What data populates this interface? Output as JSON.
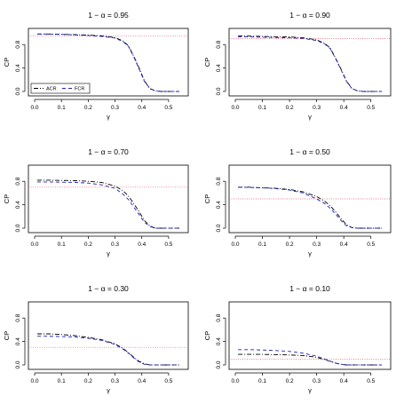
{
  "chart_data": [
    {
      "type": "line",
      "title": "1 − α = 0.95",
      "xlabel": "γ",
      "ylabel": "CP",
      "xlim": [
        0.0,
        0.55
      ],
      "ylim": [
        0.0,
        1.0
      ],
      "xticks": [
        "0.0",
        "0.1",
        "0.2",
        "0.3",
        "0.4",
        "0.5"
      ],
      "yticks": [
        "0.0",
        "0.4",
        "0.8"
      ],
      "reference": 0.95,
      "legend": {
        "placement": "bottom-left",
        "entries": [
          "ACR",
          "FCR"
        ]
      },
      "series": [
        {
          "name": "ACR",
          "color": "#000000",
          "style": "dot-dash",
          "x": [
            0.01,
            0.05,
            0.1,
            0.15,
            0.2,
            0.25,
            0.3,
            0.33,
            0.35,
            0.37,
            0.39,
            0.41,
            0.43,
            0.45,
            0.47,
            0.5,
            0.54
          ],
          "y": [
            0.98,
            0.98,
            0.975,
            0.97,
            0.96,
            0.95,
            0.92,
            0.86,
            0.78,
            0.6,
            0.4,
            0.18,
            0.05,
            0.01,
            0.0,
            0.0,
            0.0
          ]
        },
        {
          "name": "FCR",
          "color": "#1f1fbf",
          "style": "dashed",
          "x": [
            0.01,
            0.05,
            0.1,
            0.15,
            0.2,
            0.25,
            0.3,
            0.33,
            0.35,
            0.37,
            0.39,
            0.41,
            0.43,
            0.45,
            0.47,
            0.5,
            0.54
          ],
          "y": [
            0.98,
            0.98,
            0.975,
            0.965,
            0.955,
            0.94,
            0.91,
            0.85,
            0.77,
            0.59,
            0.38,
            0.17,
            0.05,
            0.01,
            0.0,
            0.0,
            0.0
          ]
        }
      ]
    },
    {
      "type": "line",
      "title": "1 − α = 0.90",
      "xlabel": "γ",
      "ylabel": "CP",
      "xlim": [
        0.0,
        0.55
      ],
      "ylim": [
        0.0,
        1.0
      ],
      "xticks": [
        "0.0",
        "0.1",
        "0.2",
        "0.3",
        "0.4",
        "0.5"
      ],
      "yticks": [
        "0.0",
        "0.4",
        "0.8"
      ],
      "reference": 0.9,
      "series": [
        {
          "name": "ACR",
          "color": "#000000",
          "style": "dot-dash",
          "x": [
            0.01,
            0.05,
            0.1,
            0.15,
            0.2,
            0.25,
            0.3,
            0.33,
            0.35,
            0.37,
            0.39,
            0.41,
            0.43,
            0.45,
            0.47,
            0.5,
            0.54
          ],
          "y": [
            0.95,
            0.945,
            0.94,
            0.935,
            0.93,
            0.915,
            0.88,
            0.82,
            0.74,
            0.57,
            0.38,
            0.18,
            0.05,
            0.01,
            0.0,
            0.0,
            0.0
          ]
        },
        {
          "name": "FCR",
          "color": "#1f1fbf",
          "style": "dashed",
          "x": [
            0.01,
            0.05,
            0.1,
            0.15,
            0.2,
            0.25,
            0.3,
            0.33,
            0.35,
            0.37,
            0.39,
            0.41,
            0.43,
            0.45,
            0.47,
            0.5,
            0.54
          ],
          "y": [
            0.93,
            0.93,
            0.925,
            0.92,
            0.915,
            0.905,
            0.87,
            0.81,
            0.73,
            0.56,
            0.37,
            0.17,
            0.05,
            0.01,
            0.0,
            0.0,
            0.0
          ]
        }
      ]
    },
    {
      "type": "line",
      "title": "1 − α = 0.70",
      "xlabel": "γ",
      "ylabel": "CP",
      "xlim": [
        0.0,
        0.55
      ],
      "ylim": [
        0.0,
        1.0
      ],
      "xticks": [
        "0.0",
        "0.1",
        "0.2",
        "0.3",
        "0.4",
        "0.5"
      ],
      "yticks": [
        "0.0",
        "0.4",
        "0.8"
      ],
      "reference": 0.7,
      "series": [
        {
          "name": "ACR",
          "color": "#000000",
          "style": "dot-dash",
          "x": [
            0.01,
            0.05,
            0.1,
            0.15,
            0.2,
            0.25,
            0.3,
            0.33,
            0.35,
            0.37,
            0.39,
            0.41,
            0.43,
            0.45,
            0.47,
            0.5,
            0.54
          ],
          "y": [
            0.82,
            0.82,
            0.815,
            0.81,
            0.8,
            0.78,
            0.72,
            0.64,
            0.55,
            0.42,
            0.28,
            0.13,
            0.04,
            0.0,
            0.0,
            0.0,
            0.0
          ]
        },
        {
          "name": "FCR",
          "color": "#1f1fbf",
          "style": "dashed",
          "x": [
            0.01,
            0.05,
            0.1,
            0.15,
            0.2,
            0.25,
            0.3,
            0.33,
            0.35,
            0.37,
            0.39,
            0.41,
            0.43,
            0.45,
            0.47,
            0.5,
            0.54
          ],
          "y": [
            0.79,
            0.79,
            0.785,
            0.78,
            0.77,
            0.74,
            0.68,
            0.58,
            0.49,
            0.36,
            0.23,
            0.1,
            0.03,
            0.0,
            0.0,
            0.0,
            0.0
          ]
        }
      ]
    },
    {
      "type": "line",
      "title": "1 − α = 0.50",
      "xlabel": "γ",
      "ylabel": "CP",
      "xlim": [
        0.0,
        0.55
      ],
      "ylim": [
        0.0,
        1.0
      ],
      "xticks": [
        "0.0",
        "0.1",
        "0.2",
        "0.3",
        "0.4",
        "0.5"
      ],
      "yticks": [
        "0.0",
        "0.4",
        "0.8"
      ],
      "reference": 0.5,
      "series": [
        {
          "name": "ACR",
          "color": "#000000",
          "style": "dot-dash",
          "x": [
            0.01,
            0.05,
            0.1,
            0.15,
            0.2,
            0.25,
            0.3,
            0.33,
            0.35,
            0.37,
            0.39,
            0.41,
            0.43,
            0.45,
            0.47,
            0.5,
            0.54
          ],
          "y": [
            0.7,
            0.7,
            0.69,
            0.68,
            0.66,
            0.62,
            0.54,
            0.46,
            0.38,
            0.28,
            0.16,
            0.06,
            0.01,
            0.0,
            0.0,
            0.0,
            0.0
          ]
        },
        {
          "name": "FCR",
          "color": "#1f1fbf",
          "style": "dashed",
          "x": [
            0.01,
            0.05,
            0.1,
            0.15,
            0.2,
            0.25,
            0.3,
            0.33,
            0.35,
            0.37,
            0.39,
            0.41,
            0.43,
            0.45,
            0.47,
            0.5,
            0.54
          ],
          "y": [
            0.7,
            0.695,
            0.69,
            0.675,
            0.65,
            0.6,
            0.5,
            0.42,
            0.34,
            0.24,
            0.13,
            0.04,
            0.01,
            0.0,
            0.0,
            0.0,
            0.0
          ]
        }
      ]
    },
    {
      "type": "line",
      "title": "1 − α = 0.30",
      "xlabel": "γ",
      "ylabel": "CP",
      "xlim": [
        0.0,
        0.55
      ],
      "ylim": [
        0.0,
        1.0
      ],
      "xticks": [
        "0.0",
        "0.1",
        "0.2",
        "0.3",
        "0.4",
        "0.5"
      ],
      "yticks": [
        "0.0",
        "0.4",
        "0.8"
      ],
      "reference": 0.3,
      "series": [
        {
          "name": "ACR",
          "color": "#000000",
          "style": "dot-dash",
          "x": [
            0.01,
            0.05,
            0.1,
            0.15,
            0.2,
            0.25,
            0.3,
            0.33,
            0.35,
            0.37,
            0.39,
            0.41,
            0.43,
            0.45,
            0.47,
            0.5,
            0.54
          ],
          "y": [
            0.53,
            0.53,
            0.52,
            0.5,
            0.47,
            0.43,
            0.36,
            0.28,
            0.21,
            0.13,
            0.06,
            0.02,
            0.0,
            0.0,
            0.0,
            0.0,
            0.0
          ]
        },
        {
          "name": "FCR",
          "color": "#1f1fbf",
          "style": "dashed",
          "x": [
            0.01,
            0.05,
            0.1,
            0.15,
            0.2,
            0.25,
            0.3,
            0.33,
            0.35,
            0.37,
            0.39,
            0.41,
            0.43,
            0.45,
            0.47,
            0.5,
            0.54
          ],
          "y": [
            0.49,
            0.49,
            0.485,
            0.475,
            0.455,
            0.42,
            0.35,
            0.27,
            0.2,
            0.12,
            0.05,
            0.01,
            0.0,
            0.0,
            0.0,
            0.0,
            0.0
          ]
        }
      ]
    },
    {
      "type": "line",
      "title": "1 − α = 0.10",
      "xlabel": "γ",
      "ylabel": "CP",
      "xlim": [
        0.0,
        0.55
      ],
      "ylim": [
        0.0,
        1.0
      ],
      "xticks": [
        "0.0",
        "0.1",
        "0.2",
        "0.3",
        "0.4",
        "0.5"
      ],
      "yticks": [
        "0.0",
        "0.4",
        "0.8"
      ],
      "reference": 0.1,
      "series": [
        {
          "name": "ACR",
          "color": "#000000",
          "style": "dot-dash",
          "x": [
            0.01,
            0.05,
            0.1,
            0.15,
            0.2,
            0.25,
            0.3,
            0.33,
            0.35,
            0.37,
            0.39,
            0.41,
            0.43,
            0.45,
            0.47,
            0.5,
            0.54
          ],
          "y": [
            0.18,
            0.18,
            0.18,
            0.175,
            0.17,
            0.16,
            0.13,
            0.09,
            0.06,
            0.03,
            0.01,
            0.0,
            0.0,
            0.0,
            0.0,
            0.0,
            0.0
          ]
        },
        {
          "name": "FCR",
          "color": "#1f1fbf",
          "style": "dashed",
          "x": [
            0.01,
            0.05,
            0.1,
            0.15,
            0.2,
            0.25,
            0.3,
            0.33,
            0.35,
            0.37,
            0.39,
            0.41,
            0.43,
            0.45,
            0.47,
            0.5,
            0.54
          ],
          "y": [
            0.26,
            0.26,
            0.255,
            0.245,
            0.23,
            0.2,
            0.15,
            0.1,
            0.065,
            0.03,
            0.01,
            0.0,
            0.0,
            0.0,
            0.0,
            0.0,
            0.0
          ]
        }
      ]
    }
  ],
  "colors": {
    "reference_line": "#e8566a",
    "acr": "#000000",
    "fcr": "#1f1fbf",
    "axis": "#000000"
  }
}
